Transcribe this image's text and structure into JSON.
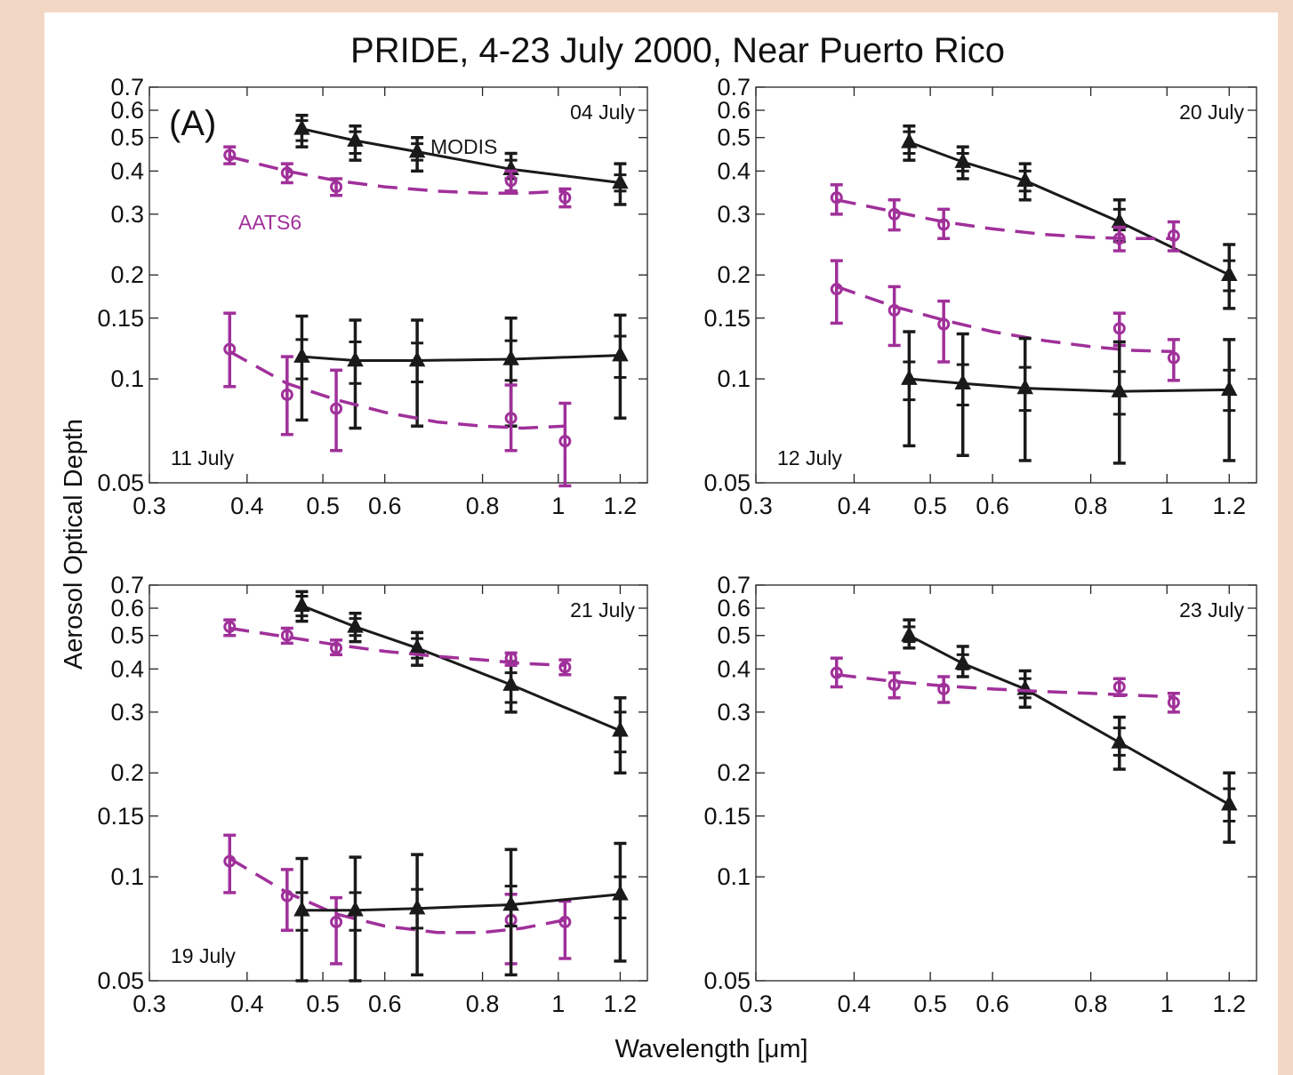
{
  "chart_data": {
    "type": "line",
    "title": "PRIDE, 4-23 July 2000, Near Puerto Rico",
    "xlabel": "Wavelength [μm]",
    "ylabel": "Aerosol Optical Depth",
    "x_scale": "log",
    "y_scale": "log",
    "xlim": [
      0.3,
      1.3
    ],
    "ylim": [
      0.05,
      0.7
    ],
    "x_ticks": [
      0.3,
      0.4,
      0.5,
      0.6,
      0.8,
      1,
      1.2
    ],
    "x_tick_labels": [
      "0.3",
      "0.4",
      "0.5",
      "0.6",
      "0.8",
      "1",
      "1.2"
    ],
    "y_ticks": [
      0.05,
      0.1,
      0.15,
      0.2,
      0.3,
      0.4,
      0.5,
      0.6,
      0.7
    ],
    "y_tick_labels": [
      "0.05",
      "0.1",
      "0.15",
      "0.2",
      "0.3",
      "0.4",
      "0.5",
      "0.6",
      "0.7"
    ],
    "grid": false,
    "colors": {
      "MODIS": "#1a1a1a",
      "AATS6": "#a0309a"
    },
    "panel_letter": "(A)",
    "series_labels": {
      "modis": "MODIS",
      "aats": "AATS6"
    },
    "panels": [
      {
        "position": "top-left",
        "dates": [
          {
            "text": "04 July",
            "placement": "top-right"
          },
          {
            "text": "11 July",
            "placement": "bottom-left"
          }
        ],
        "series": [
          {
            "name": "MODIS",
            "style": "solid",
            "marker": "triangle",
            "x": [
              0.47,
              0.55,
              0.66,
              0.87,
              1.2
            ],
            "y": [
              0.53,
              0.49,
              0.455,
              0.405,
              0.37
            ],
            "err": [
              [
                0.47,
                0.58,
                0.49,
                0.56
              ],
              [
                0.43,
                0.54,
                0.45,
                0.52
              ],
              [
                0.4,
                0.5,
                0.43,
                0.48
              ],
              [
                0.35,
                0.45,
                0.38,
                0.43
              ],
              [
                0.32,
                0.42,
                0.35,
                0.39
              ]
            ]
          },
          {
            "name": "AATS6",
            "style": "dashed",
            "marker": "circle",
            "x": [
              0.38,
              0.45,
              0.52,
              0.87,
              1.02
            ],
            "y": [
              0.445,
              0.395,
              0.36,
              0.375,
              0.335
            ],
            "err": [
              [
                0.42,
                0.47
              ],
              [
                0.37,
                0.42
              ],
              [
                0.34,
                0.38
              ],
              [
                0.35,
                0.4
              ],
              [
                0.315,
                0.355
              ]
            ],
            "fit": {
              "x": [
                0.38,
                0.45,
                0.52,
                0.6,
                0.7,
                0.8,
                0.9,
                1.02
              ],
              "y": [
                0.44,
                0.4,
                0.375,
                0.36,
                0.35,
                0.345,
                0.345,
                0.35
              ]
            }
          },
          {
            "name": "MODIS",
            "style": "solid",
            "marker": "triangle",
            "x": [
              0.47,
              0.55,
              0.66,
              0.87,
              1.2
            ],
            "y": [
              0.116,
              0.113,
              0.113,
              0.114,
              0.117
            ],
            "err": [
              [
                0.076,
                0.152,
                0.1,
                0.13
              ],
              [
                0.072,
                0.148,
                0.097,
                0.128
              ],
              [
                0.073,
                0.148,
                0.098,
                0.127
              ],
              [
                0.073,
                0.15,
                0.099,
                0.129
              ],
              [
                0.077,
                0.153,
                0.101,
                0.133
              ]
            ]
          },
          {
            "name": "AATS6",
            "style": "dashed",
            "marker": "circle",
            "x": [
              0.38,
              0.45,
              0.52,
              0.87,
              1.02
            ],
            "y": [
              0.122,
              0.09,
              0.082,
              0.077,
              0.066
            ],
            "err": [
              [
                0.095,
                0.155
              ],
              [
                0.069,
                0.116
              ],
              [
                0.062,
                0.106
              ],
              [
                0.062,
                0.096
              ],
              [
                0.049,
                0.085
              ]
            ],
            "fit": {
              "x": [
                0.38,
                0.45,
                0.52,
                0.6,
                0.7,
                0.8,
                0.9,
                1.02
              ],
              "y": [
                0.12,
                0.097,
                0.087,
                0.08,
                0.075,
                0.073,
                0.072,
                0.073
              ]
            }
          }
        ]
      },
      {
        "position": "top-right",
        "dates": [
          {
            "text": "20 July",
            "placement": "top-right"
          },
          {
            "text": "12 July",
            "placement": "bottom-left"
          }
        ],
        "series": [
          {
            "name": "MODIS",
            "style": "solid",
            "marker": "triangle",
            "x": [
              0.47,
              0.55,
              0.66,
              0.87,
              1.2
            ],
            "y": [
              0.485,
              0.425,
              0.375,
              0.285,
              0.2
            ],
            "err": [
              [
                0.43,
                0.54,
                0.45,
                0.52
              ],
              [
                0.38,
                0.47,
                0.4,
                0.45
              ],
              [
                0.33,
                0.42,
                0.35,
                0.4
              ],
              [
                0.25,
                0.33,
                0.27,
                0.31
              ],
              [
                0.16,
                0.245,
                0.18,
                0.22
              ]
            ]
          },
          {
            "name": "AATS6",
            "style": "dashed",
            "marker": "circle",
            "x": [
              0.38,
              0.45,
              0.52,
              0.87,
              1.02
            ],
            "y": [
              0.335,
              0.3,
              0.28,
              0.255,
              0.26
            ],
            "err": [
              [
                0.3,
                0.365
              ],
              [
                0.27,
                0.33
              ],
              [
                0.255,
                0.31
              ],
              [
                0.235,
                0.275
              ],
              [
                0.235,
                0.285
              ]
            ],
            "fit": {
              "x": [
                0.38,
                0.45,
                0.52,
                0.6,
                0.7,
                0.8,
                0.9,
                1.02
              ],
              "y": [
                0.33,
                0.305,
                0.285,
                0.272,
                0.262,
                0.257,
                0.255,
                0.255
              ]
            }
          },
          {
            "name": "AATS6",
            "style": "dashed",
            "marker": "circle",
            "x": [
              0.38,
              0.45,
              0.52,
              0.87,
              1.02
            ],
            "y": [
              0.182,
              0.158,
              0.144,
              0.14,
              0.115
            ],
            "err": [
              [
                0.145,
                0.22
              ],
              [
                0.125,
                0.185
              ],
              [
                0.112,
                0.168
              ],
              [
                0.125,
                0.155
              ],
              [
                0.099,
                0.13
              ]
            ],
            "fit": {
              "x": [
                0.38,
                0.45,
                0.52,
                0.6,
                0.7,
                0.8,
                0.9,
                1.02
              ],
              "y": [
                0.185,
                0.162,
                0.148,
                0.137,
                0.129,
                0.124,
                0.121,
                0.12
              ]
            }
          },
          {
            "name": "MODIS",
            "style": "solid",
            "marker": "triangle",
            "x": [
              0.47,
              0.55,
              0.66,
              0.87,
              1.2
            ],
            "y": [
              0.1,
              0.097,
              0.094,
              0.092,
              0.093
            ],
            "err": [
              [
                0.064,
                0.137,
                0.087,
                0.112
              ],
              [
                0.06,
                0.135,
                0.084,
                0.11
              ],
              [
                0.058,
                0.131,
                0.081,
                0.108
              ],
              [
                0.057,
                0.128,
                0.079,
                0.105
              ],
              [
                0.058,
                0.13,
                0.081,
                0.106
              ]
            ]
          }
        ]
      },
      {
        "position": "bottom-left",
        "dates": [
          {
            "text": "21 July",
            "placement": "top-right"
          },
          {
            "text": "19 July",
            "placement": "bottom-left"
          }
        ],
        "series": [
          {
            "name": "MODIS",
            "style": "solid",
            "marker": "triangle",
            "x": [
              0.47,
              0.55,
              0.66,
              0.87,
              1.2
            ],
            "y": [
              0.61,
              0.53,
              0.46,
              0.36,
              0.265
            ],
            "err": [
              [
                0.55,
                0.67,
                0.57,
                0.65
              ],
              [
                0.48,
                0.58,
                0.5,
                0.56
              ],
              [
                0.41,
                0.51,
                0.43,
                0.49
              ],
              [
                0.3,
                0.42,
                0.32,
                0.39
              ],
              [
                0.2,
                0.33,
                0.23,
                0.3
              ]
            ]
          },
          {
            "name": "AATS6",
            "style": "dashed",
            "marker": "circle",
            "x": [
              0.38,
              0.45,
              0.52,
              0.87,
              1.02
            ],
            "y": [
              0.53,
              0.5,
              0.46,
              0.43,
              0.405
            ],
            "err": [
              [
                0.5,
                0.555
              ],
              [
                0.475,
                0.525
              ],
              [
                0.44,
                0.485
              ],
              [
                0.41,
                0.445
              ],
              [
                0.385,
                0.425
              ]
            ],
            "fit": {
              "x": [
                0.38,
                0.45,
                0.52,
                0.6,
                0.7,
                0.8,
                0.9,
                1.02
              ],
              "y": [
                0.525,
                0.495,
                0.47,
                0.45,
                0.435,
                0.425,
                0.415,
                0.41
              ]
            }
          },
          {
            "name": "AATS6",
            "style": "dashed",
            "marker": "circle",
            "x": [
              0.38,
              0.45,
              0.52,
              0.87,
              1.02
            ],
            "y": [
              0.111,
              0.088,
              0.074,
              0.075,
              0.074
            ],
            "err": [
              [
                0.09,
                0.132
              ],
              [
                0.07,
                0.105
              ],
              [
                0.056,
                0.087
              ],
              [
                0.056,
                0.089
              ],
              [
                0.058,
                0.085
              ]
            ],
            "fit": {
              "x": [
                0.38,
                0.45,
                0.52,
                0.6,
                0.7,
                0.8,
                0.9,
                1.02
              ],
              "y": [
                0.113,
                0.09,
                0.078,
                0.072,
                0.069,
                0.069,
                0.071,
                0.075
              ]
            }
          },
          {
            "name": "MODIS",
            "style": "solid",
            "marker": "triangle",
            "x": [
              0.47,
              0.55,
              0.66,
              0.87,
              1.2
            ],
            "y": [
              0.08,
              0.08,
              0.081,
              0.083,
              0.089
            ],
            "err": [
              [
                0.05,
                0.113,
                0.07,
                0.09
              ],
              [
                0.05,
                0.114,
                0.07,
                0.09
              ],
              [
                0.052,
                0.116,
                0.071,
                0.092
              ],
              [
                0.052,
                0.12,
                0.072,
                0.094
              ],
              [
                0.057,
                0.125,
                0.076,
                0.1
              ]
            ]
          }
        ]
      },
      {
        "position": "bottom-right",
        "dates": [
          {
            "text": "23 July",
            "placement": "top-right"
          }
        ],
        "series": [
          {
            "name": "MODIS",
            "style": "solid",
            "marker": "triangle",
            "x": [
              0.47,
              0.55,
              0.66,
              0.87,
              1.2
            ],
            "y": [
              0.5,
              0.415,
              0.35,
              0.245,
              0.162
            ],
            "err": [
              [
                0.46,
                0.555,
                0.48,
                0.53
              ],
              [
                0.38,
                0.465,
                0.4,
                0.44
              ],
              [
                0.31,
                0.395,
                0.33,
                0.375
              ],
              [
                0.205,
                0.29,
                0.225,
                0.27
              ],
              [
                0.126,
                0.2,
                0.145,
                0.18
              ]
            ]
          },
          {
            "name": "AATS6",
            "style": "dashed",
            "marker": "circle",
            "x": [
              0.38,
              0.45,
              0.52,
              0.87,
              1.02
            ],
            "y": [
              0.39,
              0.36,
              0.35,
              0.355,
              0.32
            ],
            "err": [
              [
                0.355,
                0.43
              ],
              [
                0.33,
                0.39
              ],
              [
                0.32,
                0.38
              ],
              [
                0.335,
                0.375
              ],
              [
                0.3,
                0.34
              ]
            ],
            "fit": {
              "x": [
                0.38,
                0.45,
                0.52,
                0.6,
                0.7,
                0.8,
                0.9,
                1.02
              ],
              "y": [
                0.385,
                0.368,
                0.357,
                0.35,
                0.344,
                0.34,
                0.336,
                0.332
              ]
            }
          }
        ]
      }
    ]
  }
}
